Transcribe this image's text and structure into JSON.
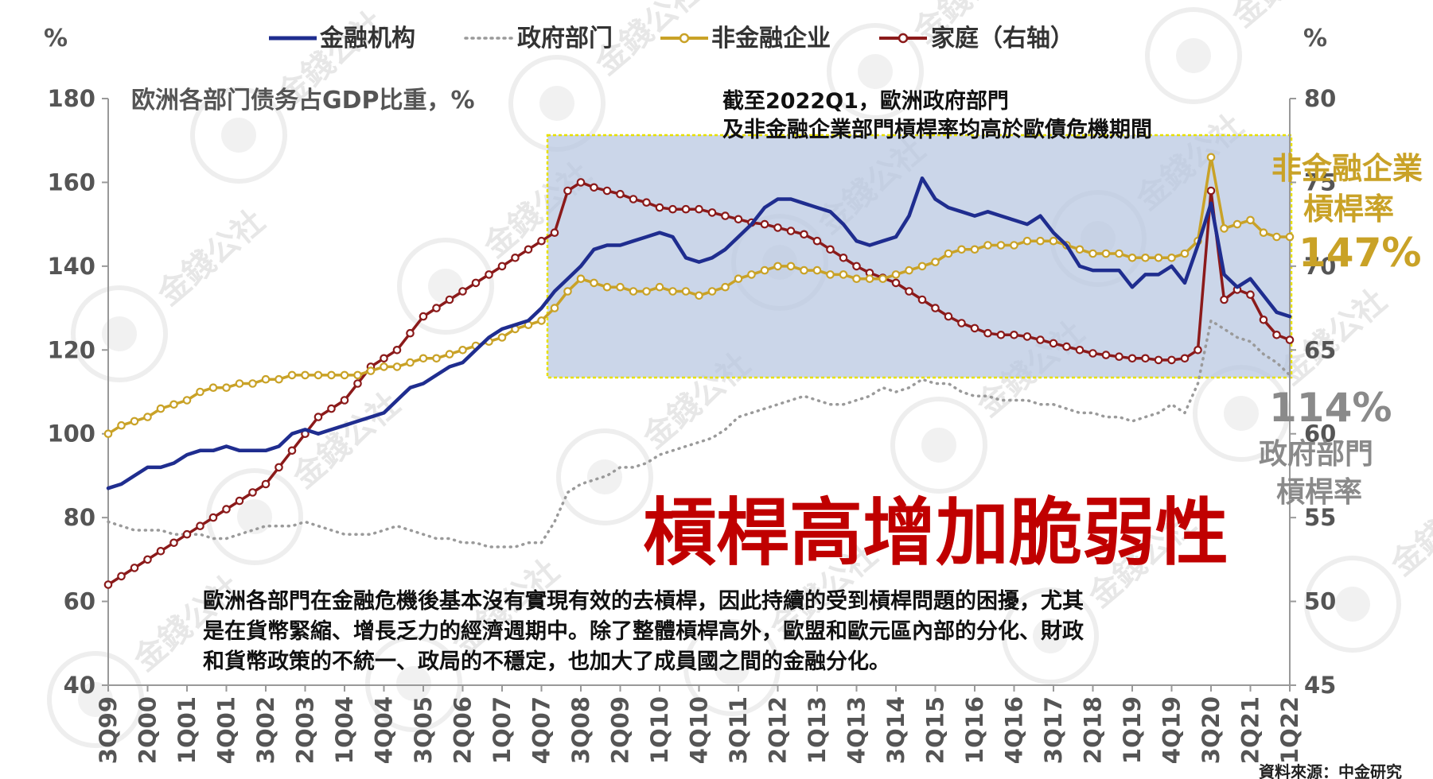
{
  "chart_data": {
    "type": "line",
    "title": "",
    "subtitle": "欧洲各部门债务占GDP比重，%",
    "y_left_unit": "%",
    "y_right_unit": "%",
    "ylim_left": [
      40,
      180
    ],
    "ylim_right": [
      45,
      80
    ],
    "yticks_left": [
      "40",
      "60",
      "80",
      "100",
      "120",
      "140",
      "160",
      "180"
    ],
    "yticks_right": [
      "45",
      "50",
      "55",
      "60",
      "65",
      "70",
      "75",
      "80"
    ],
    "x_tick_labels": [
      "3Q99",
      "2Q00",
      "1Q01",
      "4Q01",
      "3Q02",
      "2Q03",
      "1Q04",
      "4Q04",
      "3Q05",
      "2Q06",
      "1Q07",
      "4Q07",
      "3Q08",
      "2Q09",
      "1Q10",
      "4Q10",
      "3Q11",
      "2Q12",
      "1Q13",
      "4Q13",
      "3Q14",
      "2Q15",
      "1Q16",
      "4Q16",
      "3Q17",
      "2Q18",
      "1Q19",
      "4Q19",
      "3Q20",
      "2Q21",
      "1Q22"
    ],
    "n_points": 91,
    "legend_position": "top",
    "grid": false,
    "series": [
      {
        "name": "金融机构",
        "axis": "left",
        "style": "solid",
        "color": "#1f2d8f",
        "values": [
          87,
          88,
          90,
          92,
          92,
          93,
          95,
          96,
          96,
          97,
          96,
          96,
          96,
          97,
          100,
          101,
          100,
          101,
          102,
          103,
          104,
          105,
          108,
          111,
          112,
          114,
          116,
          117,
          120,
          123,
          125,
          126,
          127,
          130,
          134,
          137,
          140,
          144,
          145,
          145,
          146,
          147,
          148,
          147,
          142,
          141,
          142,
          144,
          147,
          150,
          154,
          156,
          156,
          155,
          154,
          153,
          150,
          146,
          145,
          146,
          147,
          152,
          161,
          156,
          154,
          153,
          152,
          153,
          152,
          151,
          150,
          152,
          148,
          145,
          140,
          139,
          139,
          139,
          135,
          138,
          138,
          140,
          136,
          145,
          155,
          138,
          135,
          137,
          133,
          129,
          128
        ]
      },
      {
        "name": "政府部门",
        "axis": "left",
        "style": "dotted",
        "color": "#9a9a9a",
        "values": [
          79,
          78,
          77,
          77,
          77,
          76,
          76,
          76,
          75,
          75,
          76,
          77,
          78,
          78,
          78,
          79,
          78,
          77,
          76,
          76,
          76,
          77,
          78,
          77,
          76,
          75,
          75,
          74,
          74,
          73,
          73,
          73,
          74,
          74,
          79,
          86,
          88,
          89,
          90,
          92,
          92,
          93,
          95,
          96,
          97,
          98,
          99,
          101,
          104,
          105,
          106,
          107,
          108,
          109,
          108,
          107,
          107,
          108,
          109,
          111,
          110,
          111,
          113,
          112,
          112,
          110,
          109,
          109,
          108,
          108,
          108,
          107,
          107,
          106,
          105,
          105,
          104,
          104,
          103,
          104,
          105,
          107,
          105,
          112,
          127,
          125,
          123,
          122,
          119,
          117,
          114
        ]
      },
      {
        "name": "非金融企业",
        "axis": "left",
        "style": "solid-marker",
        "color": "#c9a227",
        "values": [
          100,
          102,
          103,
          104,
          106,
          107,
          108,
          110,
          111,
          111,
          112,
          112,
          113,
          113,
          114,
          114,
          114,
          114,
          114,
          114,
          115,
          116,
          116,
          117,
          118,
          118,
          119,
          120,
          121,
          122,
          123,
          125,
          126,
          127,
          130,
          134,
          137,
          136,
          135,
          135,
          134,
          134,
          135,
          134,
          134,
          133,
          134,
          135,
          137,
          138,
          139,
          140,
          140,
          139,
          139,
          138,
          138,
          137,
          137,
          137,
          138,
          139,
          140,
          141,
          143,
          144,
          144,
          145,
          145,
          145,
          146,
          146,
          146,
          145,
          144,
          143,
          143,
          143,
          142,
          142,
          142,
          142,
          143,
          146,
          166,
          149,
          150,
          151,
          148,
          147,
          147
        ]
      },
      {
        "name": "家庭（右轴）",
        "axis": "right",
        "style": "solid-marker",
        "color": "#8b1a1a",
        "values": [
          51,
          51.5,
          52,
          52.5,
          53,
          53.5,
          54,
          54.5,
          55,
          55.5,
          56,
          56.5,
          57,
          58,
          59,
          60,
          61,
          61.5,
          62,
          63,
          64,
          64.5,
          65,
          66,
          67,
          67.5,
          68,
          68.5,
          69,
          69.5,
          70,
          70.5,
          71,
          71.5,
          72,
          74.5,
          75,
          74.7,
          74.5,
          74.3,
          74,
          73.8,
          73.5,
          73.4,
          73.4,
          73.4,
          73.2,
          73,
          72.8,
          72.6,
          72.5,
          72.3,
          72.1,
          71.9,
          71.5,
          71,
          70.5,
          70,
          69.6,
          69.3,
          69,
          68.5,
          68,
          67.5,
          67,
          66.6,
          66.3,
          66,
          65.9,
          65.9,
          65.8,
          65.6,
          65.4,
          65.2,
          65,
          64.8,
          64.7,
          64.6,
          64.5,
          64.5,
          64.4,
          64.4,
          64.5,
          65,
          74.5,
          68,
          68.6,
          68.3,
          66.8,
          65.9,
          65.6
        ]
      }
    ]
  },
  "legend": {
    "items": [
      {
        "label": "金融机构",
        "color": "#1f2d8f",
        "style": "solid"
      },
      {
        "label": "政府部门",
        "color": "#9a9a9a",
        "style": "dotted"
      },
      {
        "label": "非金融企业",
        "color": "#c9a227",
        "style": "marker"
      },
      {
        "label": "家庭（右轴）",
        "color": "#8b1a1a",
        "style": "marker"
      }
    ]
  },
  "annotation": {
    "line1": "截至2022Q1，歐洲政府部門",
    "line2": "及非金融企業部門槓桿率均高於歐債危機期間"
  },
  "headline": "槓桿高增加脆弱性",
  "paragraph": {
    "line1": "歐洲各部門在金融危機後基本沒有實現有效的去槓桿，因此持續的受到槓桿問題的困擾，尤其",
    "line2": "是在貨幣緊縮、增長乏力的經濟週期中。除了整體槓桿高外，歐盟和歐元區內部的分化、財政",
    "line3": "和貨幣政策的不統一、政局的不穩定，也加大了成員國之間的金融分化。"
  },
  "callouts": {
    "corp_title1": "非金融企業",
    "corp_title2": "槓桿率",
    "corp_value": "147%",
    "gov_value": "114%",
    "gov_title1": "政府部門",
    "gov_title2": "槓桿率"
  },
  "source": "資料來源：中金研究",
  "watermark": "金錢公社",
  "colors": {
    "highlight_fill": "#b7c6e0",
    "highlight_border": "#e8e000",
    "headline": "#c00000",
    "gold": "#c9a227",
    "gray": "#8a8a8a"
  }
}
